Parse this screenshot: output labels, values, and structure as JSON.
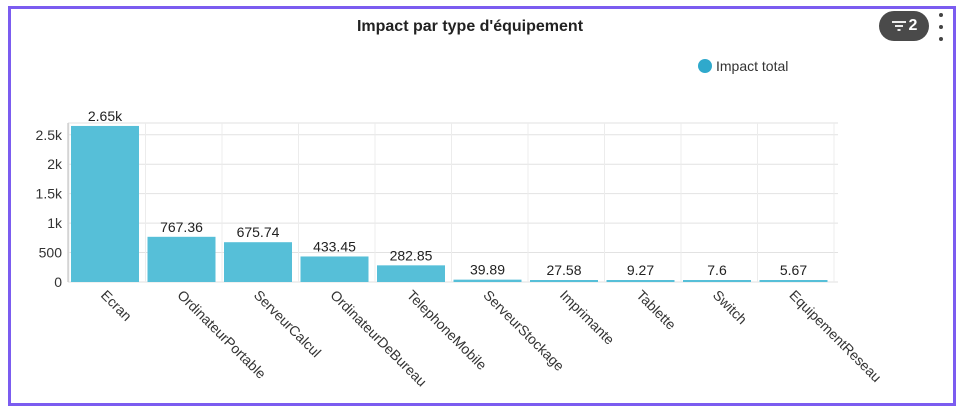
{
  "chart_data": {
    "type": "bar",
    "title": "Impact par type d'équipement",
    "categories": [
      "Ecran",
      "OrdinateurPortable",
      "ServeurCalcul",
      "OrdinateurDeBureau",
      "TelephoneMobile",
      "ServeurStockage",
      "Imprimante",
      "Tablette",
      "Switch",
      "EquipementReseau"
    ],
    "series": [
      {
        "name": "Impact total",
        "values": [
          2650,
          767.36,
          675.74,
          433.45,
          282.85,
          39.89,
          27.58,
          9.27,
          7.6,
          5.67
        ],
        "labels": [
          "2.65k",
          "767.36",
          "675.74",
          "433.45",
          "282.85",
          "39.89",
          "27.58",
          "9.27",
          "7.6",
          "5.67"
        ]
      }
    ],
    "yticks": [
      {
        "value": 0,
        "label": "0"
      },
      {
        "value": 500,
        "label": "500"
      },
      {
        "value": 1000,
        "label": "1k"
      },
      {
        "value": 1500,
        "label": "1.5k"
      },
      {
        "value": 2000,
        "label": "2k"
      },
      {
        "value": 2500,
        "label": "2.5k"
      }
    ],
    "ylim": [
      0,
      2700
    ],
    "grid": true,
    "legend_position": "top-right",
    "bar_color": "#56bfd8"
  },
  "toolbar": {
    "filter_count": "2"
  },
  "colors": {
    "frame": "#7b5cf0",
    "legend_dot": "#2fa9cc"
  }
}
